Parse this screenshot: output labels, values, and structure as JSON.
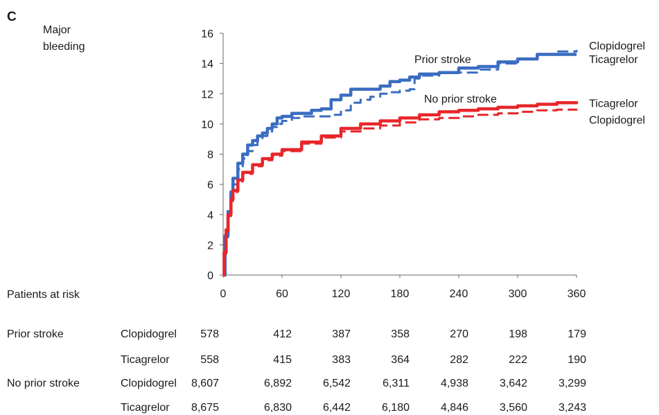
{
  "chart_data": {
    "type": "line",
    "panel_letter": "C",
    "ylabel_line1": "Major",
    "ylabel_line2": "bleeding",
    "xlim": [
      0,
      360
    ],
    "ylim": [
      0,
      16
    ],
    "x_ticks": [
      0,
      60,
      120,
      180,
      240,
      300,
      360
    ],
    "y_ticks": [
      0,
      2,
      4,
      6,
      8,
      10,
      12,
      14,
      16
    ],
    "grid": false,
    "annotations": {
      "prior_stroke": "Prior stroke",
      "no_prior_stroke": "No prior stroke"
    },
    "series": [
      {
        "name": "Clopidogrel",
        "group": "Prior stroke",
        "color": "#3a6cc1",
        "style": "dashed",
        "x": [
          0,
          2,
          5,
          8,
          10,
          15,
          20,
          25,
          30,
          35,
          40,
          45,
          50,
          55,
          60,
          70,
          80,
          90,
          100,
          110,
          120,
          130,
          140,
          150,
          160,
          170,
          180,
          190,
          195,
          200,
          220,
          240,
          260,
          280,
          300,
          320,
          340,
          360
        ],
        "y": [
          0,
          2.5,
          4.0,
          5.2,
          6.0,
          7.0,
          7.7,
          8.2,
          8.6,
          8.9,
          9.2,
          9.5,
          9.8,
          10.0,
          10.2,
          10.4,
          10.5,
          10.5,
          10.5,
          10.6,
          10.9,
          11.4,
          11.6,
          11.8,
          12.0,
          12.1,
          12.2,
          12.3,
          13.0,
          13.2,
          13.4,
          13.4,
          13.6,
          14.0,
          14.3,
          14.6,
          14.8,
          14.9
        ]
      },
      {
        "name": "Ticagrelor",
        "group": "Prior stroke",
        "color": "#3a6cc1",
        "style": "solid",
        "x": [
          0,
          2,
          5,
          8,
          10,
          15,
          20,
          25,
          30,
          35,
          40,
          45,
          50,
          55,
          60,
          70,
          80,
          90,
          100,
          110,
          120,
          130,
          140,
          150,
          160,
          170,
          180,
          190,
          200,
          220,
          240,
          260,
          280,
          300,
          320,
          340,
          360
        ],
        "y": [
          0,
          2.6,
          4.2,
          5.5,
          6.4,
          7.4,
          8.0,
          8.6,
          8.9,
          9.2,
          9.4,
          9.7,
          10.0,
          10.4,
          10.5,
          10.7,
          10.7,
          10.9,
          11.0,
          11.6,
          11.9,
          12.3,
          12.3,
          12.3,
          12.5,
          12.8,
          12.9,
          13.1,
          13.3,
          13.4,
          13.7,
          13.8,
          14.1,
          14.3,
          14.6,
          14.6,
          14.6
        ]
      },
      {
        "name": "Ticagrelor",
        "group": "No prior stroke",
        "color": "#e8262a",
        "style": "solid",
        "x": [
          0,
          1,
          3,
          5,
          8,
          10,
          15,
          20,
          30,
          40,
          50,
          60,
          80,
          100,
          120,
          140,
          160,
          180,
          200,
          220,
          240,
          260,
          280,
          300,
          320,
          340,
          360
        ],
        "y": [
          0,
          1.5,
          3.0,
          4.0,
          5.0,
          5.6,
          6.3,
          6.8,
          7.3,
          7.7,
          8.0,
          8.3,
          8.8,
          9.2,
          9.7,
          10.0,
          10.2,
          10.4,
          10.6,
          10.8,
          10.9,
          11.0,
          11.1,
          11.2,
          11.3,
          11.4,
          11.5
        ]
      },
      {
        "name": "Clopidogrel",
        "group": "No prior stroke",
        "color": "#e8262a",
        "style": "dashed",
        "x": [
          0,
          1,
          3,
          5,
          8,
          10,
          15,
          20,
          30,
          40,
          50,
          60,
          80,
          100,
          120,
          140,
          160,
          180,
          200,
          220,
          240,
          260,
          280,
          300,
          320,
          340,
          360
        ],
        "y": [
          0,
          1.4,
          2.9,
          3.9,
          4.9,
          5.5,
          6.2,
          6.7,
          7.2,
          7.6,
          7.9,
          8.2,
          8.7,
          9.1,
          9.5,
          9.7,
          9.9,
          10.1,
          10.3,
          10.4,
          10.5,
          10.6,
          10.7,
          10.8,
          10.9,
          10.95,
          11.0
        ]
      }
    ],
    "line_labels": [
      {
        "text": "Clopidogrel",
        "y": 15.2
      },
      {
        "text": "Ticagrelor",
        "y": 14.3
      },
      {
        "text": "Ticagrelor",
        "y": 11.4
      },
      {
        "text": "Clopidogrel",
        "y": 10.3
      }
    ]
  },
  "risk_table": {
    "title": "Patients at risk",
    "rows": [
      {
        "group": "Prior stroke",
        "treatment": "Clopidogrel",
        "values": [
          "578",
          "412",
          "387",
          "358",
          "270",
          "198",
          "179"
        ]
      },
      {
        "group": "",
        "treatment": "Ticagrelor",
        "values": [
          "558",
          "415",
          "383",
          "364",
          "282",
          "222",
          "190"
        ]
      },
      {
        "group": "No prior stroke",
        "treatment": "Clopidogrel",
        "values": [
          "8,607",
          "6,892",
          "6,542",
          "6,311",
          "4,938",
          "3,642",
          "3,299"
        ]
      },
      {
        "group": "",
        "treatment": "Ticagrelor",
        "values": [
          "8,675",
          "6,830",
          "6,442",
          "6,180",
          "4,846",
          "3,560",
          "3,243"
        ]
      }
    ]
  }
}
